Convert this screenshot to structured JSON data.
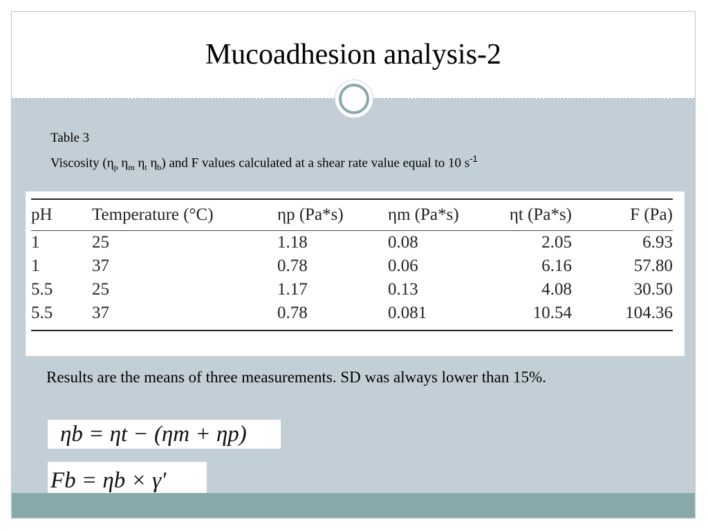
{
  "slide": {
    "title": "Mucoadhesion analysis-2",
    "table_label": "Table 3",
    "caption_parts": {
      "prefix": "Viscosity (η",
      "sub_p": "p",
      "eta_m": " η",
      "sub_m": "m",
      "eta_t": " η",
      "sub_t": "t",
      "eta_b": " η",
      "sub_b": "b",
      "suffix": ") and F values calculated at a shear rate value equal to 10 s",
      "unit_sup": "-1"
    },
    "table": {
      "headers": {
        "ph": "pH",
        "temperature": "Temperature (°C)",
        "eta_p": "ηp (Pa*s)",
        "eta_m": "ηm (Pa*s)",
        "eta_t": "ηt (Pa*s)",
        "f": "F (Pa)"
      },
      "rows": [
        {
          "ph": "1",
          "temperature": "25",
          "eta_p": "1.18",
          "eta_m": "0.08",
          "eta_t": "2.05",
          "f": "6.93"
        },
        {
          "ph": "1",
          "temperature": "37",
          "eta_p": "0.78",
          "eta_m": "0.06",
          "eta_t": "6.16",
          "f": "57.80"
        },
        {
          "ph": "5.5",
          "temperature": "25",
          "eta_p": "1.17",
          "eta_m": "0.13",
          "eta_t": "4.08",
          "f": "30.50"
        },
        {
          "ph": "5.5",
          "temperature": "37",
          "eta_p": "0.78",
          "eta_m": "0.081",
          "eta_t": "10.54",
          "f": "104.36"
        }
      ]
    },
    "note": "Results are the means of three measurements. SD was always lower than 15%.",
    "equations": {
      "eq1": "ηb = ηt − (ηm + ηp)",
      "eq2": "Fb = ηb × γ′"
    }
  }
}
